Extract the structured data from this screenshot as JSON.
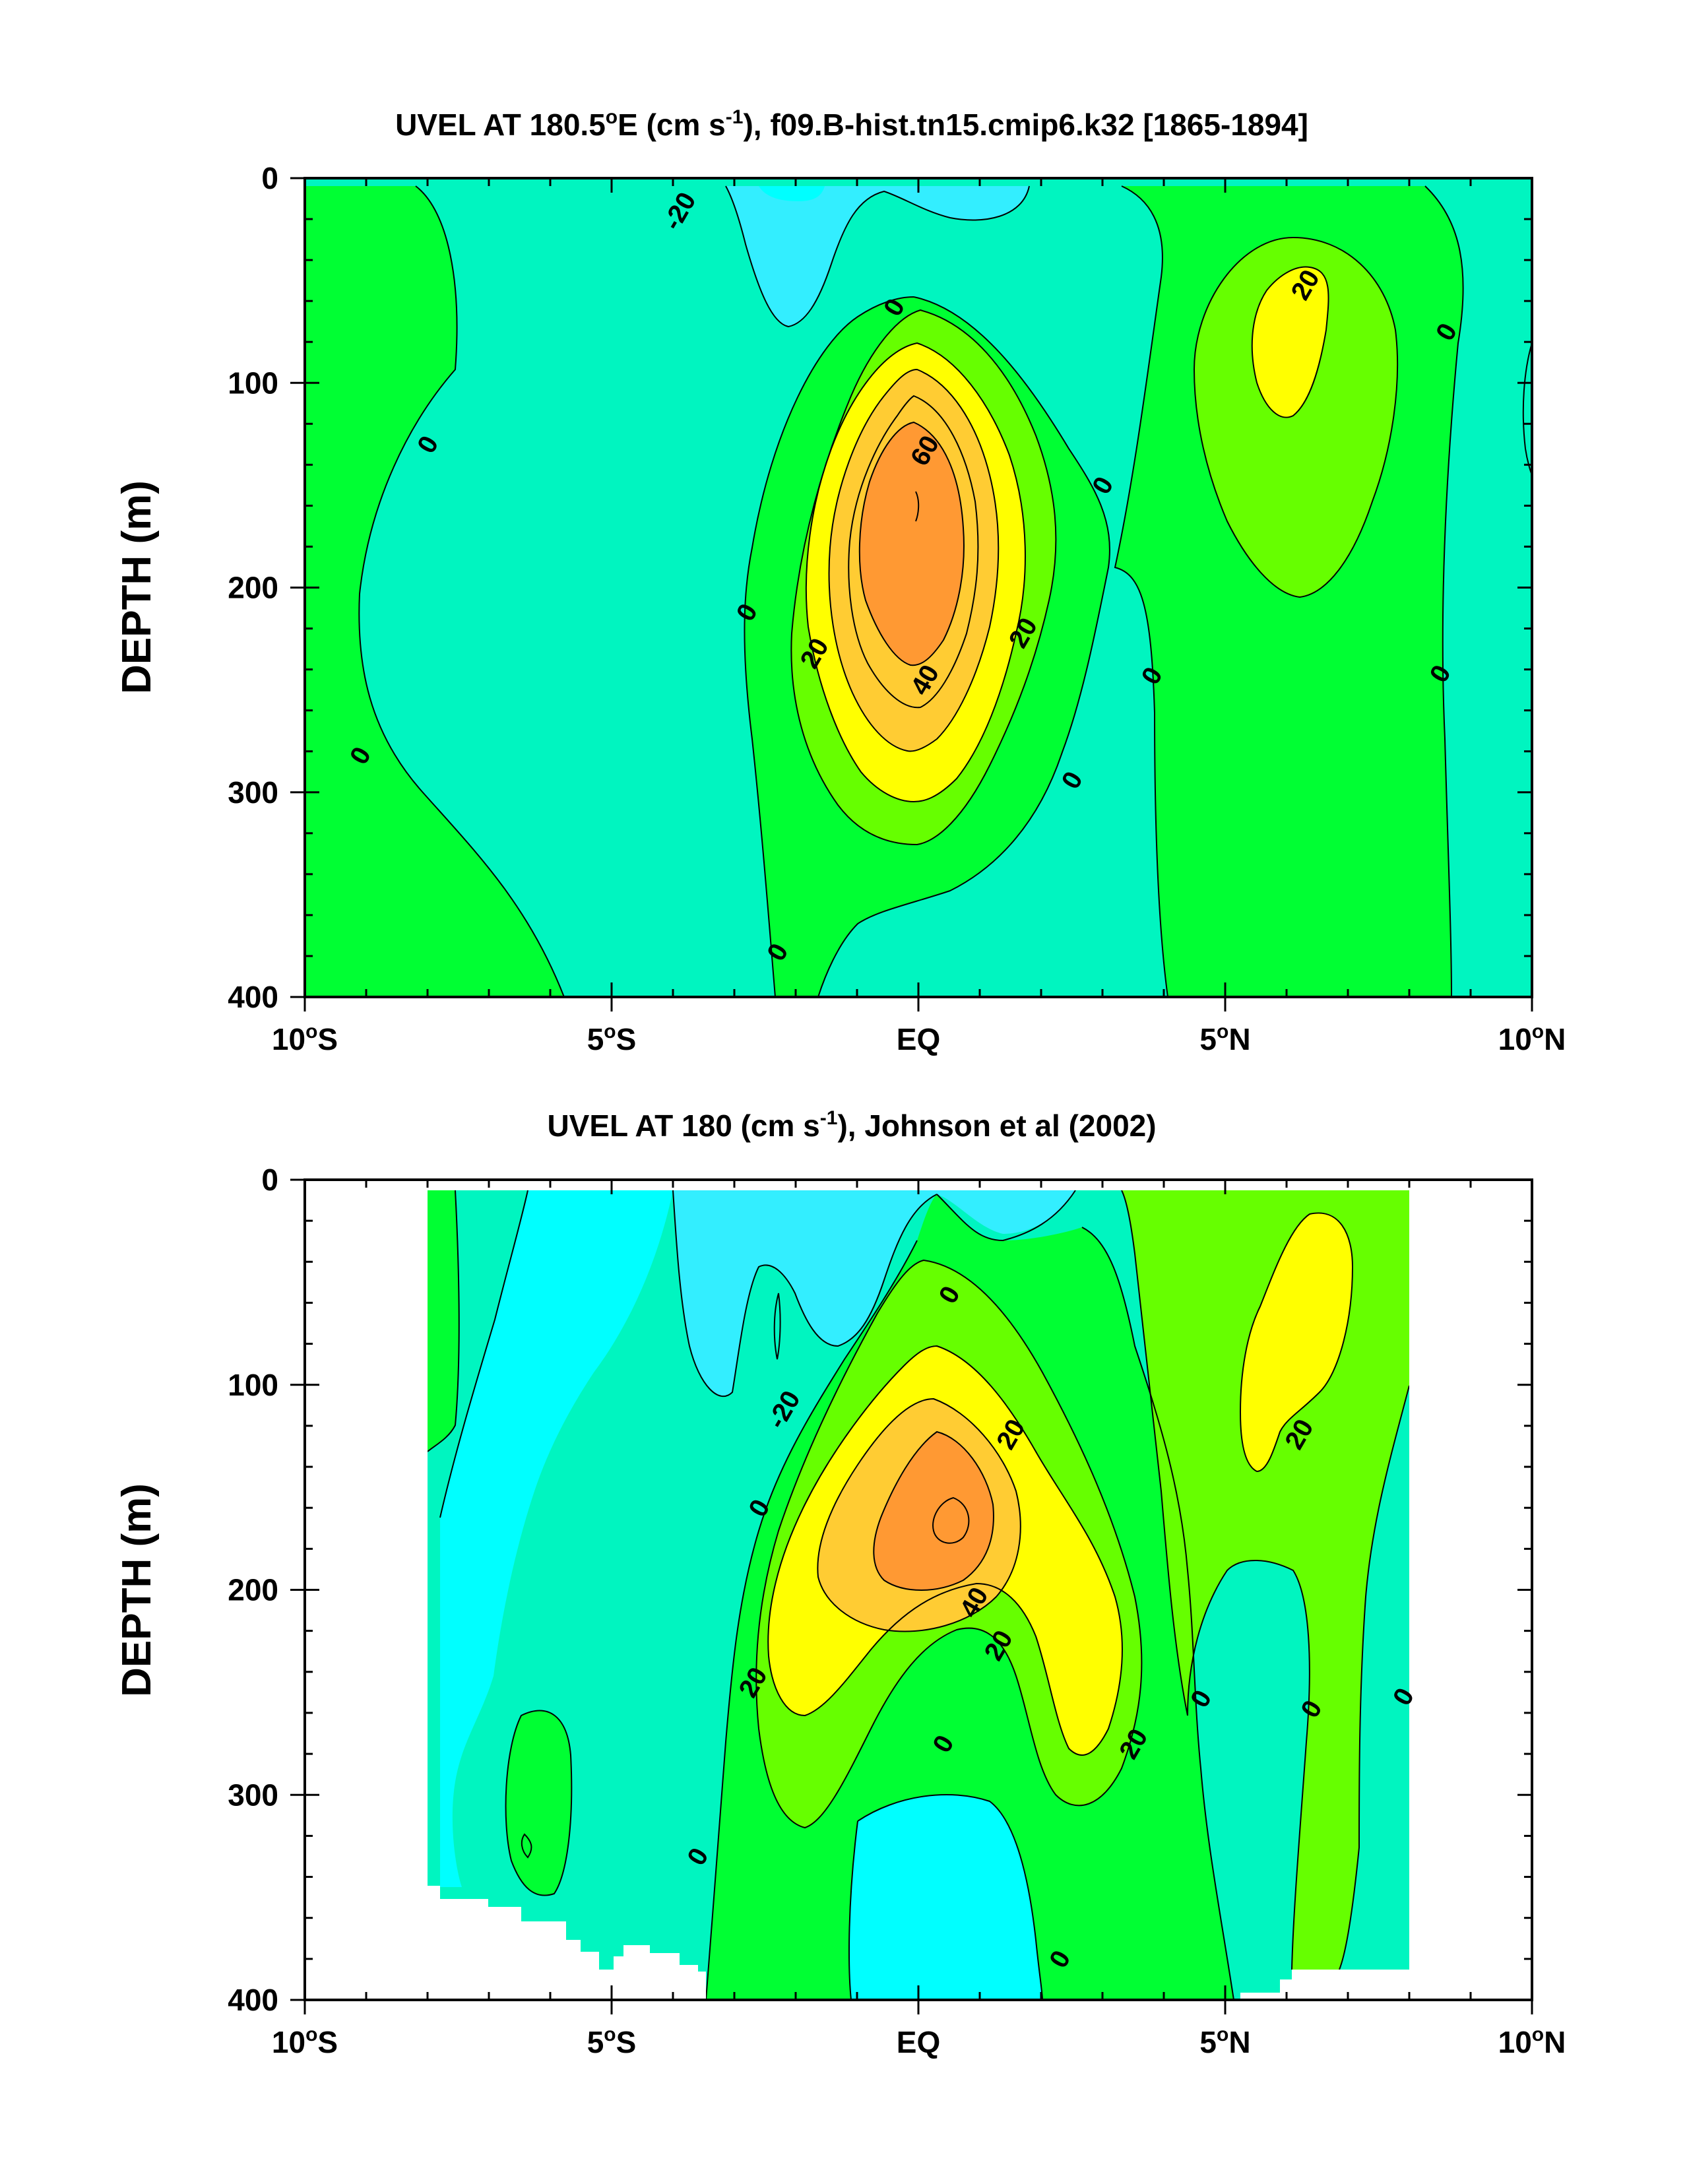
{
  "colors": {
    "lt_neg20": "#00ffff",
    "lt_neg40": "#33eeff",
    "b0_20": "#00ee99",
    "b0_20_alt": "#00f5c0",
    "b20_40": "#00ff33",
    "b20_40_alt": "#66ff00",
    "b40_60": "#ffff00",
    "b60_80": "#ffcc33",
    "b80_100": "#ff9933"
  },
  "chart_data": [
    {
      "type": "contour",
      "title_parts": {
        "a": "UVEL AT 180.5",
        "b": "o",
        "c": "E (cm s",
        "d": "-1",
        "e": "), f09.B-hist.tn15.cmip6.k32 [1865-1894]"
      },
      "ylabel": "DEPTH (m)",
      "xlim": [
        -10,
        10
      ],
      "ylim": [
        400,
        0
      ],
      "yticks": [
        "0",
        "100",
        "200",
        "300",
        "400"
      ],
      "xticks": [
        {
          "value": -10,
          "num": "10",
          "deg": "o",
          "hem": "S"
        },
        {
          "value": -5,
          "num": "5",
          "deg": "o",
          "hem": "S"
        },
        {
          "value": 0,
          "num": "EQ",
          "deg": "",
          "hem": ""
        },
        {
          "value": 5,
          "num": "5",
          "deg": "o",
          "hem": "N"
        },
        {
          "value": 10,
          "num": "10",
          "deg": "o",
          "hem": "N"
        }
      ],
      "contour_labels": [
        {
          "text": "-20",
          "x": -3.9,
          "y": 16
        },
        {
          "text": "0",
          "x": -8.0,
          "y": 130
        },
        {
          "text": "0",
          "x": -9.1,
          "y": 282
        },
        {
          "text": "0",
          "x": -0.4,
          "y": 63
        },
        {
          "text": "60",
          "x": 0.1,
          "y": 133
        },
        {
          "text": "0",
          "x": -2.8,
          "y": 212
        },
        {
          "text": "20",
          "x": -1.7,
          "y": 232
        },
        {
          "text": "40",
          "x": 0.1,
          "y": 245
        },
        {
          "text": "20",
          "x": 1.7,
          "y": 222
        },
        {
          "text": "0",
          "x": 3.0,
          "y": 150
        },
        {
          "text": "0",
          "x": 2.5,
          "y": 294
        },
        {
          "text": "0",
          "x": 3.8,
          "y": 243
        },
        {
          "text": "0",
          "x": -2.3,
          "y": 378
        },
        {
          "text": "20",
          "x": 6.3,
          "y": 52
        },
        {
          "text": "0",
          "x": 8.6,
          "y": 75
        },
        {
          "text": "0",
          "x": 8.5,
          "y": 242
        }
      ]
    },
    {
      "type": "contour",
      "title_parts": {
        "a": "UVEL AT 180 (cm s",
        "b": "-1",
        "c": "), Johnson et al (2002)"
      },
      "ylabel": "DEPTH (m)",
      "xlim": [
        -10,
        10
      ],
      "ylim": [
        400,
        0
      ],
      "yticks": [
        "0",
        "100",
        "200",
        "300",
        "400"
      ],
      "xticks": [
        {
          "value": -10,
          "num": "10",
          "deg": "o",
          "hem": "S"
        },
        {
          "value": -5,
          "num": "5",
          "deg": "o",
          "hem": "S"
        },
        {
          "value": 0,
          "num": "EQ",
          "deg": "",
          "hem": ""
        },
        {
          "value": 5,
          "num": "5",
          "deg": "o",
          "hem": "N"
        },
        {
          "value": 10,
          "num": "10",
          "deg": "o",
          "hem": "N"
        }
      ],
      "contour_labels": [
        {
          "text": "0",
          "x": 0.5,
          "y": 56
        },
        {
          "text": "-20",
          "x": -2.2,
          "y": 112
        },
        {
          "text": "0",
          "x": -2.6,
          "y": 160
        },
        {
          "text": "20",
          "x": 1.5,
          "y": 124
        },
        {
          "text": "40",
          "x": 0.9,
          "y": 206
        },
        {
          "text": "20",
          "x": 1.3,
          "y": 227
        },
        {
          "text": "20",
          "x": -2.7,
          "y": 245
        },
        {
          "text": "0",
          "x": 0.4,
          "y": 275
        },
        {
          "text": "20",
          "x": 3.5,
          "y": 275
        },
        {
          "text": "0",
          "x": -3.6,
          "y": 330
        },
        {
          "text": "0",
          "x": 2.3,
          "y": 380
        },
        {
          "text": "0",
          "x": 4.6,
          "y": 253
        },
        {
          "text": "0",
          "x": 6.4,
          "y": 258
        },
        {
          "text": "0",
          "x": 7.9,
          "y": 252
        },
        {
          "text": "20",
          "x": 6.2,
          "y": 124
        }
      ]
    }
  ]
}
